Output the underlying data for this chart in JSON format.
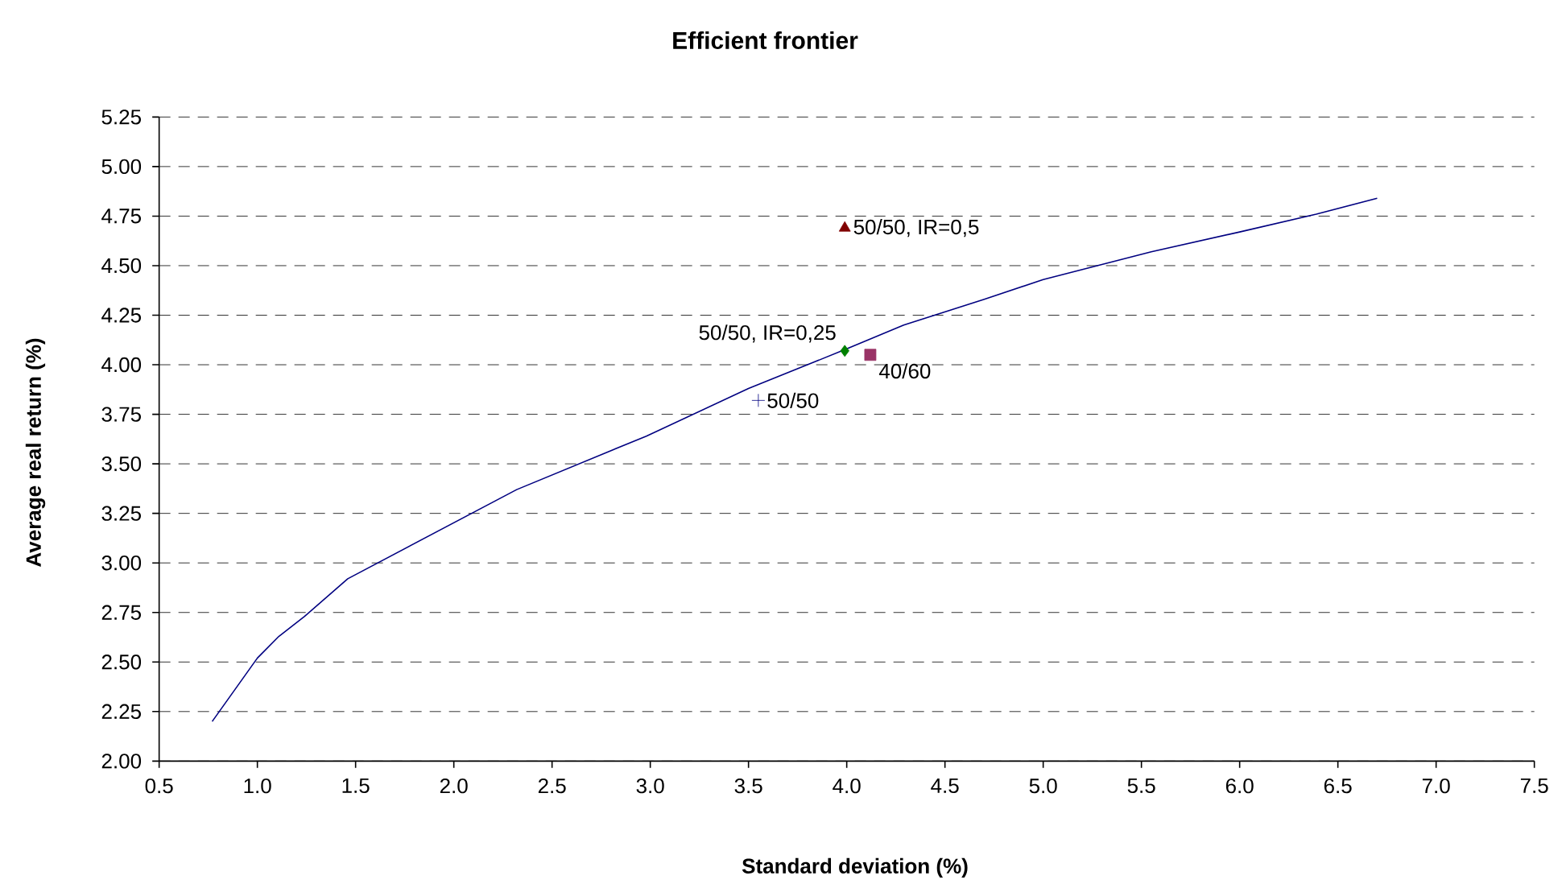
{
  "chart_data": {
    "type": "line",
    "title": "Efficient frontier",
    "xlabel": "Standard deviation (%)",
    "ylabel": "Average real return (%)",
    "xlim": [
      0.5,
      7.5
    ],
    "ylim": [
      2.0,
      5.25
    ],
    "xticks": [
      {
        "value": 0.5,
        "label": "0.5"
      },
      {
        "value": 1.0,
        "label": "1.0"
      },
      {
        "value": 1.5,
        "label": "1.5"
      },
      {
        "value": 2.0,
        "label": "2.0"
      },
      {
        "value": 2.5,
        "label": "2.5"
      },
      {
        "value": 3.0,
        "label": "3.0"
      },
      {
        "value": 3.5,
        "label": "3.5"
      },
      {
        "value": 4.0,
        "label": "4.0"
      },
      {
        "value": 4.5,
        "label": "4.5"
      },
      {
        "value": 5.0,
        "label": "5.0"
      },
      {
        "value": 5.5,
        "label": "5.5"
      },
      {
        "value": 6.0,
        "label": "6.0"
      },
      {
        "value": 6.5,
        "label": "6.5"
      },
      {
        "value": 7.0,
        "label": "7.0"
      },
      {
        "value": 7.5,
        "label": "7.5"
      }
    ],
    "yticks": [
      {
        "value": 2.0,
        "label": "2.00"
      },
      {
        "value": 2.25,
        "label": "2.25"
      },
      {
        "value": 2.5,
        "label": "2.50"
      },
      {
        "value": 2.75,
        "label": "2.75"
      },
      {
        "value": 3.0,
        "label": "3.00"
      },
      {
        "value": 3.25,
        "label": "3.25"
      },
      {
        "value": 3.5,
        "label": "3.50"
      },
      {
        "value": 3.75,
        "label": "3.75"
      },
      {
        "value": 4.0,
        "label": "4.00"
      },
      {
        "value": 4.25,
        "label": "4.25"
      },
      {
        "value": 4.5,
        "label": "4.50"
      },
      {
        "value": 4.75,
        "label": "4.75"
      },
      {
        "value": 5.0,
        "label": "5.00"
      },
      {
        "value": 5.25,
        "label": "5.25"
      }
    ],
    "grid": "y",
    "legend": false,
    "series": [
      {
        "type": "line",
        "color": "#000080",
        "marker": "none",
        "x": [
          0.77,
          1.0,
          1.11,
          1.24,
          1.46,
          2.32,
          2.98,
          3.5,
          4.0,
          4.29,
          4.7,
          5.0,
          5.55,
          6.0,
          6.39,
          6.7
        ],
        "values": [
          2.2,
          2.52,
          2.63,
          2.73,
          2.92,
          3.37,
          3.64,
          3.88,
          4.08,
          4.2,
          4.33,
          4.43,
          4.57,
          4.67,
          4.76,
          4.84
        ]
      },
      {
        "type": "scatter",
        "name": "50/50, IR=0,5",
        "color": "#800000",
        "marker": "triangle",
        "x": [
          3.99
        ],
        "values": [
          4.69
        ]
      },
      {
        "type": "scatter",
        "name": "50/50, IR=0,25",
        "color": "#008000",
        "marker": "diamond",
        "x": [
          3.99
        ],
        "values": [
          4.07
        ]
      },
      {
        "type": "scatter",
        "name": "40/60",
        "color": "#993366",
        "marker": "square",
        "x": [
          4.12
        ],
        "values": [
          4.05
        ]
      },
      {
        "type": "scatter",
        "name": "50/50",
        "color": "#000080",
        "marker": "cross",
        "x": [
          3.55
        ],
        "values": [
          3.82
        ]
      }
    ]
  }
}
